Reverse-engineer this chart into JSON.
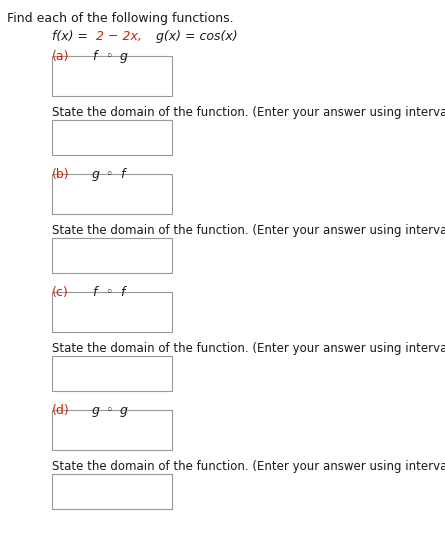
{
  "title_line": "Find each of the following functions.",
  "bg_color": "#ffffff",
  "text_color": "#1a1a1a",
  "red_color": "#cc2200",
  "label_color": "#cc2200",
  "box_edge_color": "#999999",
  "font_size_title": 9.0,
  "font_size_func": 9.0,
  "font_size_label": 9.0,
  "font_size_domain": 8.5,
  "parts": [
    {
      "label": "(a)",
      "comp_left": "f",
      "comp_right": "g"
    },
    {
      "label": "(b)",
      "comp_left": "g",
      "comp_right": "f"
    },
    {
      "label": "(c)",
      "comp_left": "f",
      "comp_right": "f"
    },
    {
      "label": "(d)",
      "comp_left": "g",
      "comp_right": "g"
    }
  ],
  "domain_text": "State the domain of the function. (Enter your answer using interval notation.)"
}
